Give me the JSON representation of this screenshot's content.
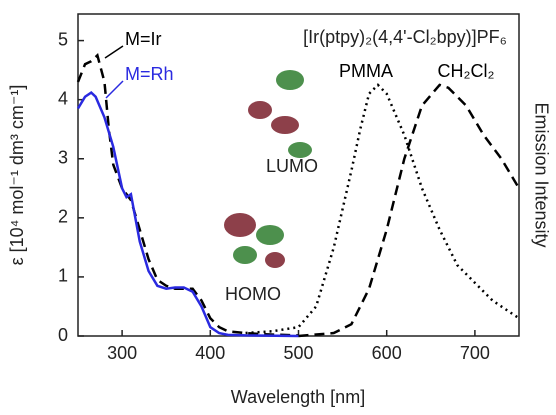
{
  "chart_data": {
    "type": "line",
    "title": "[Ir(ptpy)₂(4,4'-Cl₂bpy)]PF₆",
    "x_label": "Wavelength [nm]",
    "y_label": "ε [10⁴ mol⁻¹ dm³ cm⁻¹]",
    "y2_label": "Emission Intensity",
    "annotations": [
      "LUMO",
      "HOMO"
    ],
    "xlim": [
      250,
      750
    ],
    "xticks": [
      300,
      400,
      500,
      600,
      700
    ],
    "ylim": [
      0,
      5.45
    ],
    "yticks": [
      0,
      1,
      2,
      3,
      4,
      5
    ],
    "y2lim": [
      0,
      5.45
    ],
    "series": [
      {
        "name": "M=Ir",
        "color": "#000000",
        "style": "dashed",
        "x": [
          250,
          258,
          265,
          272,
          280,
          285,
          290,
          300,
          310,
          320,
          330,
          340,
          350,
          360,
          370,
          380,
          390,
          400,
          410,
          420,
          440,
          460,
          500
        ],
        "values": [
          4.3,
          4.6,
          4.65,
          4.75,
          4.3,
          3.5,
          2.9,
          2.5,
          2.3,
          1.8,
          1.3,
          0.95,
          0.85,
          0.8,
          0.8,
          0.8,
          0.6,
          0.3,
          0.15,
          0.08,
          0.05,
          0.03,
          0.01
        ]
      },
      {
        "name": "M=Rh",
        "color": "#2a2ae0",
        "style": "solid",
        "x": [
          250,
          258,
          265,
          270,
          280,
          290,
          300,
          305,
          310,
          315,
          320,
          330,
          340,
          350,
          360,
          370,
          380,
          390,
          400,
          410,
          420,
          440,
          500
        ],
        "values": [
          3.85,
          4.05,
          4.12,
          4.05,
          3.7,
          3.2,
          2.5,
          2.35,
          2.4,
          2.0,
          1.6,
          1.1,
          0.85,
          0.8,
          0.82,
          0.82,
          0.75,
          0.5,
          0.15,
          0.05,
          0.02,
          0.01,
          0
        ]
      },
      {
        "name": "PMMA",
        "color": "#000000",
        "style": "dotted",
        "axis": "y2",
        "x": [
          440,
          470,
          500,
          520,
          540,
          560,
          570,
          580,
          590,
          600,
          620,
          640,
          660,
          680,
          700,
          720,
          740,
          750
        ],
        "values": [
          0.05,
          0.08,
          0.15,
          0.5,
          1.5,
          2.8,
          3.5,
          4.1,
          4.25,
          4.1,
          3.4,
          2.5,
          1.8,
          1.2,
          0.9,
          0.6,
          0.4,
          0.3
        ]
      },
      {
        "name": "CH₂Cl₂",
        "color": "#000000",
        "style": "dashed",
        "axis": "y2",
        "x": [
          500,
          540,
          560,
          580,
          600,
          620,
          640,
          660,
          670,
          690,
          710,
          730,
          750
        ],
        "values": [
          0,
          0.05,
          0.2,
          0.8,
          1.8,
          3.0,
          3.9,
          4.25,
          4.2,
          3.9,
          3.4,
          3.0,
          2.5
        ]
      }
    ]
  }
}
